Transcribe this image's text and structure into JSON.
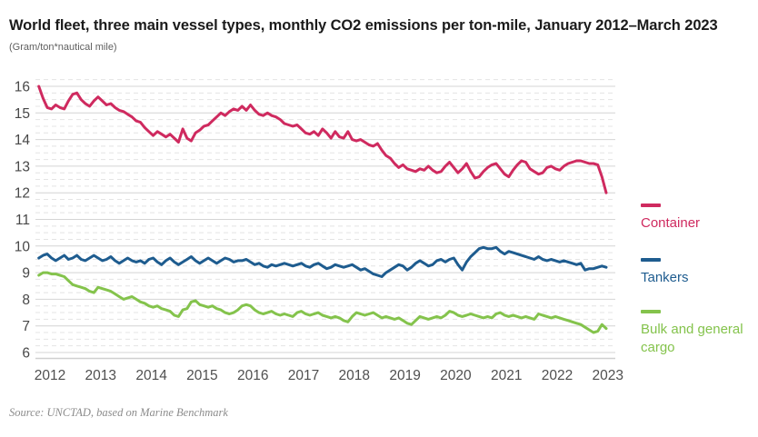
{
  "chart_data": {
    "type": "line",
    "title": "World fleet, three main vessel types, monthly CO2 emissions per ton-mile, January 2012–March 2023",
    "subtitle": "(Gram/ton*nautical mile)",
    "source": "Source: UNCTAD, based on Marine Benchmark",
    "x_ticks": [
      "2012",
      "2013",
      "2014",
      "2015",
      "2016",
      "2017",
      "2018",
      "2019",
      "2020",
      "2021",
      "2022",
      "2023"
    ],
    "y_ticks": [
      16,
      15,
      14,
      13,
      12,
      11,
      10,
      9,
      8,
      7,
      6
    ],
    "ylim": [
      6,
      16.25
    ],
    "grid": {
      "major_color": "#d4d4d4",
      "minor_color": "#e4e4e4",
      "minor_step": 0.25,
      "vertical": false
    },
    "legend_position": "right",
    "x_unit": "month",
    "series": [
      {
        "name": "Container",
        "color": "#cf2a5f",
        "values": [
          16.0,
          15.55,
          15.2,
          15.15,
          15.3,
          15.2,
          15.15,
          15.45,
          15.7,
          15.75,
          15.5,
          15.35,
          15.25,
          15.45,
          15.6,
          15.45,
          15.3,
          15.35,
          15.2,
          15.1,
          15.05,
          14.95,
          14.85,
          14.7,
          14.65,
          14.45,
          14.3,
          14.15,
          14.3,
          14.2,
          14.1,
          14.2,
          14.05,
          13.9,
          14.4,
          14.05,
          13.95,
          14.25,
          14.35,
          14.5,
          14.55,
          14.7,
          14.85,
          15.0,
          14.9,
          15.05,
          15.15,
          15.1,
          15.25,
          15.1,
          15.3,
          15.1,
          14.95,
          14.9,
          15.0,
          14.9,
          14.85,
          14.75,
          14.6,
          14.55,
          14.5,
          14.55,
          14.4,
          14.25,
          14.2,
          14.3,
          14.15,
          14.4,
          14.25,
          14.05,
          14.3,
          14.1,
          14.05,
          14.3,
          14.0,
          13.95,
          14.0,
          13.9,
          13.8,
          13.75,
          13.85,
          13.6,
          13.4,
          13.3,
          13.1,
          12.95,
          13.05,
          12.9,
          12.85,
          12.8,
          12.9,
          12.85,
          13.0,
          12.85,
          12.75,
          12.8,
          13.0,
          13.15,
          12.95,
          12.75,
          12.9,
          13.1,
          12.8,
          12.55,
          12.6,
          12.8,
          12.95,
          13.05,
          13.1,
          12.9,
          12.7,
          12.6,
          12.85,
          13.05,
          13.2,
          13.15,
          12.9,
          12.8,
          12.7,
          12.75,
          12.95,
          13.0,
          12.9,
          12.85,
          13.0,
          13.1,
          13.15,
          13.2,
          13.2,
          13.15,
          13.1,
          13.1,
          13.05,
          12.6,
          12.0
        ]
      },
      {
        "name": "Tankers",
        "color": "#1e5c8f",
        "values": [
          9.55,
          9.65,
          9.7,
          9.55,
          9.45,
          9.55,
          9.65,
          9.5,
          9.55,
          9.65,
          9.5,
          9.45,
          9.55,
          9.65,
          9.55,
          9.45,
          9.5,
          9.6,
          9.45,
          9.35,
          9.45,
          9.55,
          9.45,
          9.4,
          9.45,
          9.35,
          9.5,
          9.55,
          9.4,
          9.3,
          9.45,
          9.55,
          9.4,
          9.3,
          9.4,
          9.5,
          9.6,
          9.45,
          9.35,
          9.45,
          9.55,
          9.45,
          9.35,
          9.45,
          9.55,
          9.5,
          9.4,
          9.45,
          9.45,
          9.5,
          9.4,
          9.3,
          9.35,
          9.25,
          9.2,
          9.3,
          9.25,
          9.3,
          9.35,
          9.3,
          9.25,
          9.3,
          9.35,
          9.25,
          9.2,
          9.3,
          9.35,
          9.25,
          9.15,
          9.2,
          9.3,
          9.25,
          9.2,
          9.25,
          9.3,
          9.2,
          9.1,
          9.15,
          9.05,
          8.95,
          8.9,
          8.85,
          9.0,
          9.1,
          9.2,
          9.3,
          9.25,
          9.1,
          9.2,
          9.35,
          9.45,
          9.35,
          9.25,
          9.3,
          9.45,
          9.5,
          9.4,
          9.5,
          9.55,
          9.3,
          9.1,
          9.4,
          9.6,
          9.75,
          9.9,
          9.95,
          9.9,
          9.9,
          9.95,
          9.8,
          9.7,
          9.8,
          9.75,
          9.7,
          9.65,
          9.6,
          9.55,
          9.5,
          9.6,
          9.5,
          9.45,
          9.5,
          9.45,
          9.4,
          9.45,
          9.4,
          9.35,
          9.3,
          9.35,
          9.1,
          9.15,
          9.15,
          9.2,
          9.25,
          9.2
        ]
      },
      {
        "name": "Bulk and general cargo",
        "color": "#84c34c",
        "values": [
          8.9,
          9.0,
          9.0,
          8.95,
          8.95,
          8.9,
          8.85,
          8.7,
          8.55,
          8.5,
          8.45,
          8.4,
          8.3,
          8.25,
          8.45,
          8.4,
          8.35,
          8.3,
          8.2,
          8.1,
          8.0,
          8.05,
          8.1,
          8.0,
          7.9,
          7.85,
          7.75,
          7.7,
          7.75,
          7.65,
          7.6,
          7.55,
          7.4,
          7.35,
          7.6,
          7.65,
          7.9,
          7.95,
          7.8,
          7.75,
          7.7,
          7.75,
          7.65,
          7.6,
          7.5,
          7.45,
          7.5,
          7.6,
          7.75,
          7.8,
          7.75,
          7.6,
          7.5,
          7.45,
          7.5,
          7.55,
          7.45,
          7.4,
          7.45,
          7.4,
          7.35,
          7.5,
          7.55,
          7.45,
          7.4,
          7.45,
          7.5,
          7.4,
          7.35,
          7.3,
          7.35,
          7.3,
          7.2,
          7.15,
          7.35,
          7.5,
          7.45,
          7.4,
          7.45,
          7.5,
          7.4,
          7.3,
          7.35,
          7.3,
          7.25,
          7.3,
          7.2,
          7.1,
          7.05,
          7.2,
          7.35,
          7.3,
          7.25,
          7.3,
          7.35,
          7.3,
          7.4,
          7.55,
          7.5,
          7.4,
          7.35,
          7.4,
          7.45,
          7.4,
          7.35,
          7.3,
          7.35,
          7.3,
          7.45,
          7.5,
          7.4,
          7.35,
          7.4,
          7.35,
          7.3,
          7.35,
          7.3,
          7.25,
          7.45,
          7.4,
          7.35,
          7.3,
          7.35,
          7.3,
          7.25,
          7.2,
          7.15,
          7.1,
          7.05,
          6.95,
          6.85,
          6.75,
          6.8,
          7.05,
          6.9
        ]
      }
    ]
  },
  "legend": {
    "items": [
      {
        "label": "Container"
      },
      {
        "label": "Tankers"
      },
      {
        "label": "Bulk and general cargo"
      }
    ]
  }
}
